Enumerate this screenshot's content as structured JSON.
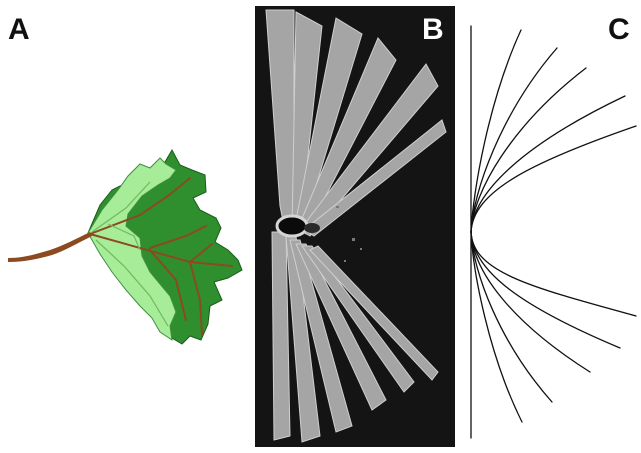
{
  "panels": {
    "a": {
      "label": "A",
      "subject": "folded-leaf"
    },
    "b": {
      "label": "B",
      "subject": "xray-scan-of-folded-strips"
    },
    "c": {
      "label": "C",
      "subject": "fan-of-curves-model"
    }
  },
  "colors": {
    "leaf_dark": "#2f8f2f",
    "leaf_light": "#a6ec99",
    "leaf_outline": "#1a5c1a",
    "stem": "#8b4a1f",
    "scan_background": "#141414",
    "scan_strip": "#a9a9a9",
    "model_lines": "#111111"
  },
  "model": {
    "line_count": 10
  }
}
